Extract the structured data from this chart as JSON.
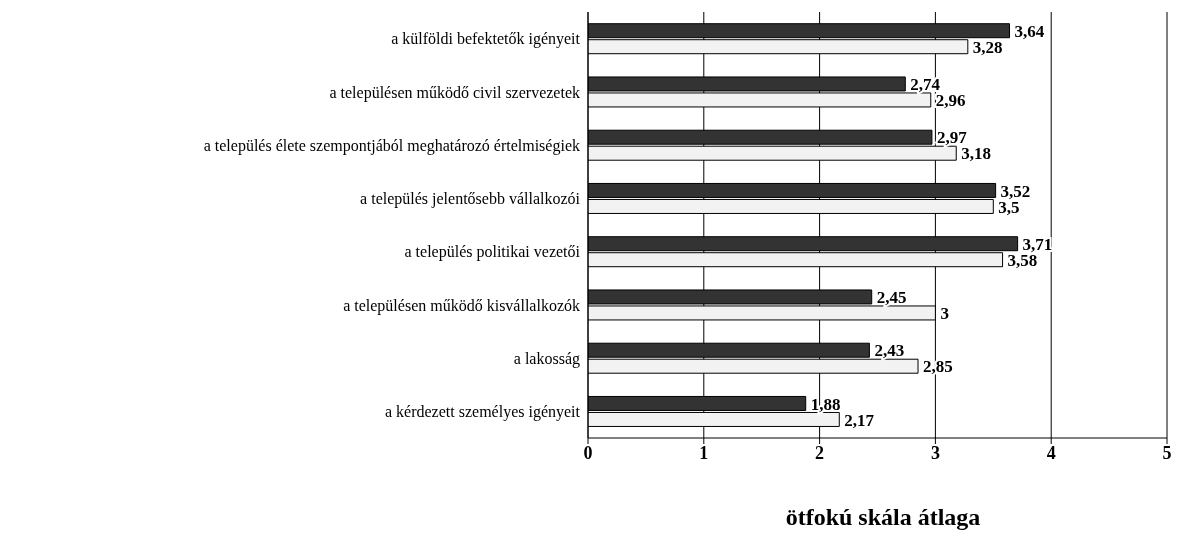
{
  "chart_data": {
    "type": "bar",
    "orientation": "horizontal",
    "xlabel": "ötfokú skála átlaga",
    "categories": [
      "a külföldi befektetők igényeit",
      "a településen működő civil szervezetek",
      "a település élete szempontjából meghatározó értelmiségiek",
      "a település jelentősebb vállalkozói",
      "a település politikai vezetői",
      "a településen működő kisvállalkozók",
      "a lakosság",
      "a kérdezett személyes igényeit"
    ],
    "series": [
      {
        "color": "#333333",
        "values": [
          3.64,
          2.74,
          2.97,
          3.52,
          3.71,
          2.45,
          2.43,
          1.88
        ],
        "value_labels": [
          "3,64",
          "2,74",
          "2,97",
          "3,52",
          "3,71",
          "2,45",
          "2,43",
          "1,88"
        ]
      },
      {
        "color": "#f2f2f2",
        "values": [
          3.28,
          2.96,
          3.18,
          3.5,
          3.58,
          3,
          2.85,
          2.17
        ],
        "value_labels": [
          "3,28",
          "2,96",
          "3,18",
          "3,5",
          "3,58",
          "3",
          "2,85",
          "2,17"
        ]
      }
    ],
    "xlim": [
      0,
      5
    ],
    "xticks": [
      0,
      1,
      2,
      3,
      4,
      5
    ],
    "grid": "x",
    "legend": false
  }
}
